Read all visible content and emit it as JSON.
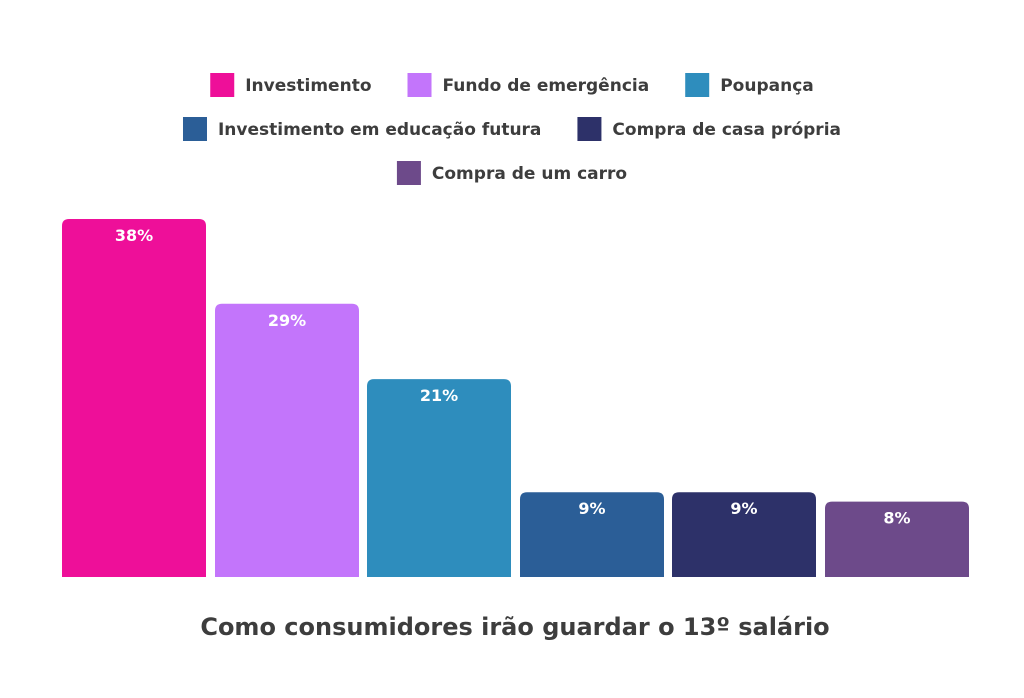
{
  "chart_data": {
    "type": "bar",
    "title": "Como consumidores irão guardar o 13º salário",
    "categories": [
      "Investimento",
      "Fundo de emergência",
      "Poupança",
      "Investimento em educação futura",
      "Compra de casa própria",
      "Compra de um carro"
    ],
    "values": [
      38,
      29,
      21,
      9,
      9,
      8
    ],
    "value_labels": [
      "38%",
      "29%",
      "21%",
      "9%",
      "9%",
      "8%"
    ],
    "unit": "%",
    "colors": [
      "#ee0f99",
      "#c375fb",
      "#2e8dbd",
      "#2b5e97",
      "#2d3169",
      "#6d4a8a"
    ],
    "legend_position": "top",
    "ylim": [
      0,
      40
    ],
    "grid": false,
    "xlabel": "",
    "ylabel": ""
  }
}
